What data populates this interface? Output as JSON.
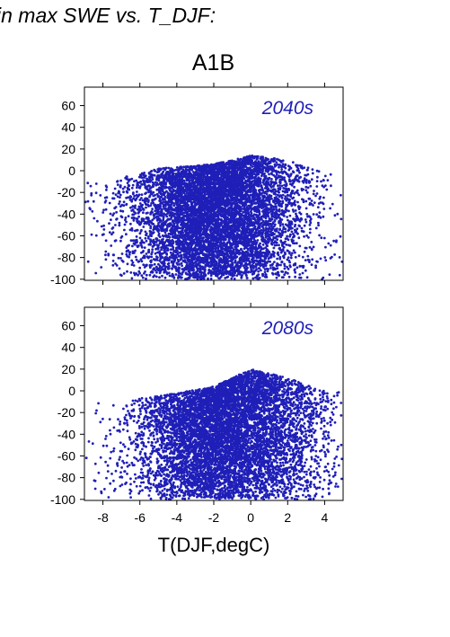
{
  "page": {
    "title": "in max SWE vs. T_DJF:",
    "scenario": "A1B"
  },
  "colors": {
    "points": "#1f1fb8",
    "period_label": "#1f1fb8",
    "axes": "#000000"
  },
  "chart_data": [
    {
      "type": "scatter",
      "period_label": "2040s",
      "xlim": [
        -9,
        5
      ],
      "ylim": [
        -101,
        77
      ],
      "y_ticks": [
        60,
        40,
        20,
        0,
        -20,
        -40,
        -60,
        -80,
        -100
      ],
      "x_ticks": [
        -8,
        -6,
        -4,
        -2,
        0,
        2,
        4
      ],
      "show_x_tick_labels": false,
      "cloud": {
        "n_points": 7500,
        "x_center": -1.8,
        "x_sd": 2.3,
        "y_top_at": [
          [
            -8,
            -10
          ],
          [
            -5,
            2
          ],
          [
            -2,
            6
          ],
          [
            0,
            14
          ],
          [
            2,
            10
          ],
          [
            4,
            -2
          ]
        ],
        "y_bottom": -100,
        "seed": 11
      }
    },
    {
      "type": "scatter",
      "period_label": "2080s",
      "xlim": [
        -9,
        5
      ],
      "ylim": [
        -101,
        77
      ],
      "y_ticks": [
        60,
        40,
        20,
        0,
        -20,
        -40,
        -60,
        -80,
        -100
      ],
      "x_ticks": [
        -8,
        -6,
        -4,
        -2,
        0,
        2,
        4
      ],
      "x_tick_labels": [
        "-8",
        "-6",
        "-4",
        "-2",
        "0",
        "2",
        "4"
      ],
      "show_x_tick_labels": true,
      "xlabel": "T(DJF,degC)",
      "cloud": {
        "n_points": 7500,
        "x_center": -1.2,
        "x_sd": 2.4,
        "y_top_at": [
          [
            -8,
            -10
          ],
          [
            -5,
            -5
          ],
          [
            -2,
            4
          ],
          [
            0,
            20
          ],
          [
            2,
            12
          ],
          [
            4,
            0
          ]
        ],
        "y_bottom": -100,
        "seed": 29
      }
    }
  ]
}
